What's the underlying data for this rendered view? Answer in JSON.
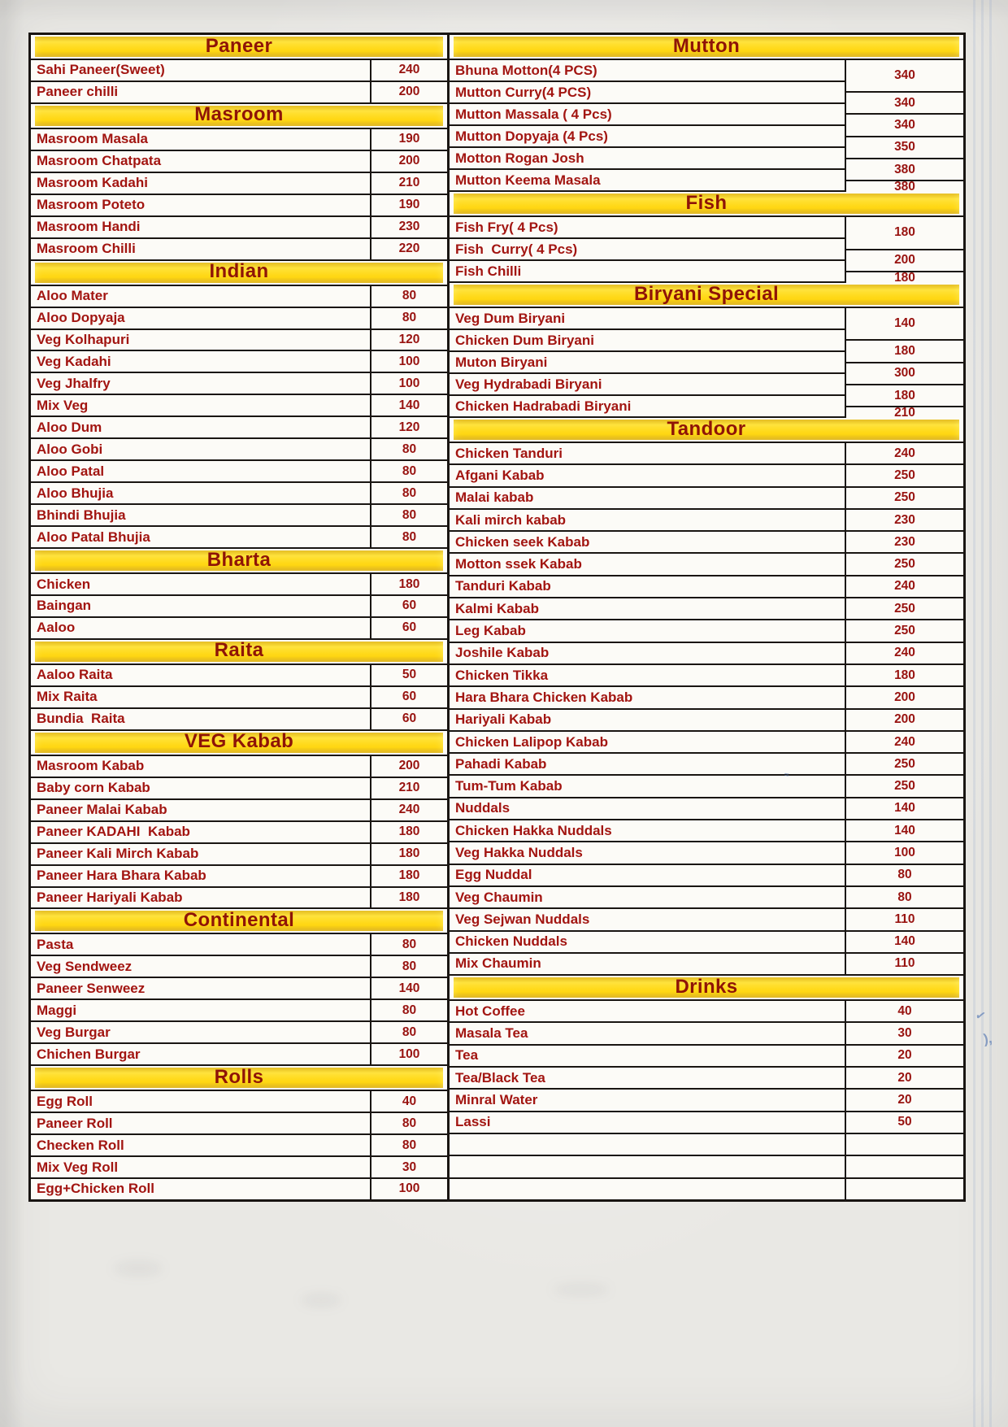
{
  "colors": {
    "section_header_bg": "#ffd60e",
    "section_header_text": "#8e1407",
    "item_text": "#a21511",
    "price_text": "#981310",
    "table_line": "#191512",
    "paper": "#fcfbf7",
    "scan_background": "#e9e8e4"
  },
  "menu": {
    "left_sections": [
      {
        "title": "Paneer",
        "items": [
          {
            "name": "Sahi Paneer(Sweet)",
            "price": "240"
          },
          {
            "name": "Paneer chilli",
            "price": "200"
          }
        ]
      },
      {
        "title": "Masroom",
        "items": [
          {
            "name": "Masroom Masala",
            "price": "190"
          },
          {
            "name": "Masroom Chatpata",
            "price": "200"
          },
          {
            "name": "Masroom Kadahi",
            "price": "210"
          },
          {
            "name": "Masroom Poteto",
            "price": "190"
          },
          {
            "name": "Masroom Handi",
            "price": "230"
          },
          {
            "name": "Masroom Chilli",
            "price": "220"
          }
        ]
      },
      {
        "title": "Indian",
        "items": [
          {
            "name": "Aloo Mater",
            "price": "80"
          },
          {
            "name": "Aloo Dopyaja",
            "price": "80"
          },
          {
            "name": "Veg Kolhapuri",
            "price": "120"
          },
          {
            "name": "Veg Kadahi",
            "price": "100"
          },
          {
            "name": "Veg Jhalfry",
            "price": "100"
          },
          {
            "name": "Mix Veg",
            "price": "140"
          },
          {
            "name": "Aloo Dum",
            "price": "120"
          },
          {
            "name": "Aloo Gobi",
            "price": "80"
          },
          {
            "name": "Aloo Patal",
            "price": "80"
          },
          {
            "name": "Aloo Bhujia",
            "price": "80"
          },
          {
            "name": "Bhindi Bhujia",
            "price": "80"
          },
          {
            "name": "Aloo Patal Bhujia",
            "price": "80"
          }
        ]
      },
      {
        "title": "Bharta",
        "items": [
          {
            "name": "Chicken",
            "price": "180"
          },
          {
            "name": "Baingan",
            "price": "60"
          },
          {
            "name": "Aaloo",
            "price": "60"
          }
        ]
      },
      {
        "title": "Raita",
        "items": [
          {
            "name": "Aaloo Raita",
            "price": "50"
          },
          {
            "name": "Mix Raita",
            "price": "60"
          },
          {
            "name": "Bundia  Raita",
            "price": "60"
          }
        ]
      },
      {
        "title": "VEG Kabab",
        "items": [
          {
            "name": "Masroom Kabab",
            "price": "200"
          },
          {
            "name": "Baby corn Kabab",
            "price": "210"
          },
          {
            "name": "Paneer Malai Kabab",
            "price": "240"
          },
          {
            "name": "Paneer KADAHI  Kabab",
            "price": "180"
          },
          {
            "name": "Paneer Kali Mirch Kabab",
            "price": "180"
          },
          {
            "name": "Paneer Hara Bhara Kabab",
            "price": "180"
          },
          {
            "name": "Paneer Hariyali Kabab",
            "price": "180"
          }
        ]
      },
      {
        "title": "Continental",
        "items": [
          {
            "name": "Pasta",
            "price": "80"
          },
          {
            "name": "Veg Sendweez",
            "price": "80"
          },
          {
            "name": "Paneer Senweez",
            "price": "140"
          },
          {
            "name": "Maggi",
            "price": "80"
          },
          {
            "name": "Veg Burgar",
            "price": "80"
          },
          {
            "name": "Chichen Burgar",
            "price": "100"
          }
        ]
      },
      {
        "title": "Rolls",
        "items": [
          {
            "name": "Egg Roll",
            "price": "40"
          },
          {
            "name": "Paneer Roll",
            "price": "80"
          },
          {
            "name": "Checken Roll",
            "price": "80"
          },
          {
            "name": "Mix Veg Roll",
            "price": "30"
          },
          {
            "name": "Egg+Chicken Roll",
            "price": "100"
          }
        ]
      }
    ],
    "right_sections": [
      {
        "title": "Mutton",
        "items": [
          {
            "name": "Bhuna Motton(4 PCS)",
            "price": "340"
          },
          {
            "name": "Mutton Curry(4 PCS)",
            "price": "340"
          },
          {
            "name": "Mutton Massala ( 4 Pcs)",
            "price": "340"
          },
          {
            "name": "Mutton Dopyaja (4 Pcs)",
            "price": "350"
          },
          {
            "name": "Motton Rogan Josh",
            "price": "380"
          },
          {
            "name": "Mutton Keema Masala",
            "price": "380"
          }
        ]
      },
      {
        "title": "Fish",
        "items": [
          {
            "name": "Fish Fry( 4 Pcs)",
            "price": "180"
          },
          {
            "name": "Fish  Curry( 4 Pcs)",
            "price": "200"
          },
          {
            "name": "Fish Chilli",
            "price": "180"
          }
        ]
      },
      {
        "title": "Biryani Special",
        "items": [
          {
            "name": "Veg Dum Biryani",
            "price": "140"
          },
          {
            "name": "Chicken Dum Biryani",
            "price": "180"
          },
          {
            "name": "Muton Biryani",
            "price": "300"
          },
          {
            "name": "Veg Hydrabadi Biryani",
            "price": "180"
          },
          {
            "name": "Chicken Hadrabadi Biryani",
            "price": "210"
          }
        ]
      },
      {
        "title": "Tandoor",
        "items": [
          {
            "name": "Chicken Tanduri",
            "price": "240"
          },
          {
            "name": "Afgani Kabab",
            "price": "250"
          },
          {
            "name": "Malai kabab",
            "price": "250"
          },
          {
            "name": "Kali mirch kabab",
            "price": "230"
          },
          {
            "name": "Chicken seek Kabab",
            "price": "230"
          },
          {
            "name": "Motton ssek Kabab",
            "price": "250"
          },
          {
            "name": "Tanduri Kabab",
            "price": "240"
          },
          {
            "name": "Kalmi Kabab",
            "price": "250"
          },
          {
            "name": "Leg Kabab",
            "price": "250"
          },
          {
            "name": "Joshile Kabab",
            "price": "240"
          },
          {
            "name": "Chicken Tikka",
            "price": "180"
          },
          {
            "name": "Hara Bhara Chicken Kabab",
            "price": "200"
          },
          {
            "name": "Hariyali Kabab",
            "price": "200"
          },
          {
            "name": "Chicken Lalipop Kabab",
            "price": "240"
          },
          {
            "name": "Pahadi Kabab",
            "price": "250"
          },
          {
            "name": "Tum-Tum Kabab",
            "price": "250"
          },
          {
            "name": "Nuddals",
            "price": "140"
          },
          {
            "name": "Chicken Hakka Nuddals",
            "price": "140"
          },
          {
            "name": "Veg Hakka Nuddals",
            "price": "100"
          },
          {
            "name": "Egg Nuddal",
            "price": "80"
          },
          {
            "name": "Veg Chaumin",
            "price": "80"
          },
          {
            "name": "Veg Sejwan Nuddals",
            "price": "110"
          },
          {
            "name": "Chicken Nuddals",
            "price": "140"
          },
          {
            "name": "Mix Chaumin",
            "price": "110"
          }
        ]
      },
      {
        "title": "Drinks",
        "items": [
          {
            "name": "Hot Coffee",
            "price": "40"
          },
          {
            "name": "Masala Tea",
            "price": "30"
          },
          {
            "name": "Tea",
            "price": "20"
          },
          {
            "name": "Tea/Black Tea",
            "price": "20"
          },
          {
            "name": "Minral Water",
            "price": "20"
          },
          {
            "name": "Lassi",
            "price": "50"
          }
        ]
      }
    ],
    "right_trailing_empty_rows": 3
  }
}
